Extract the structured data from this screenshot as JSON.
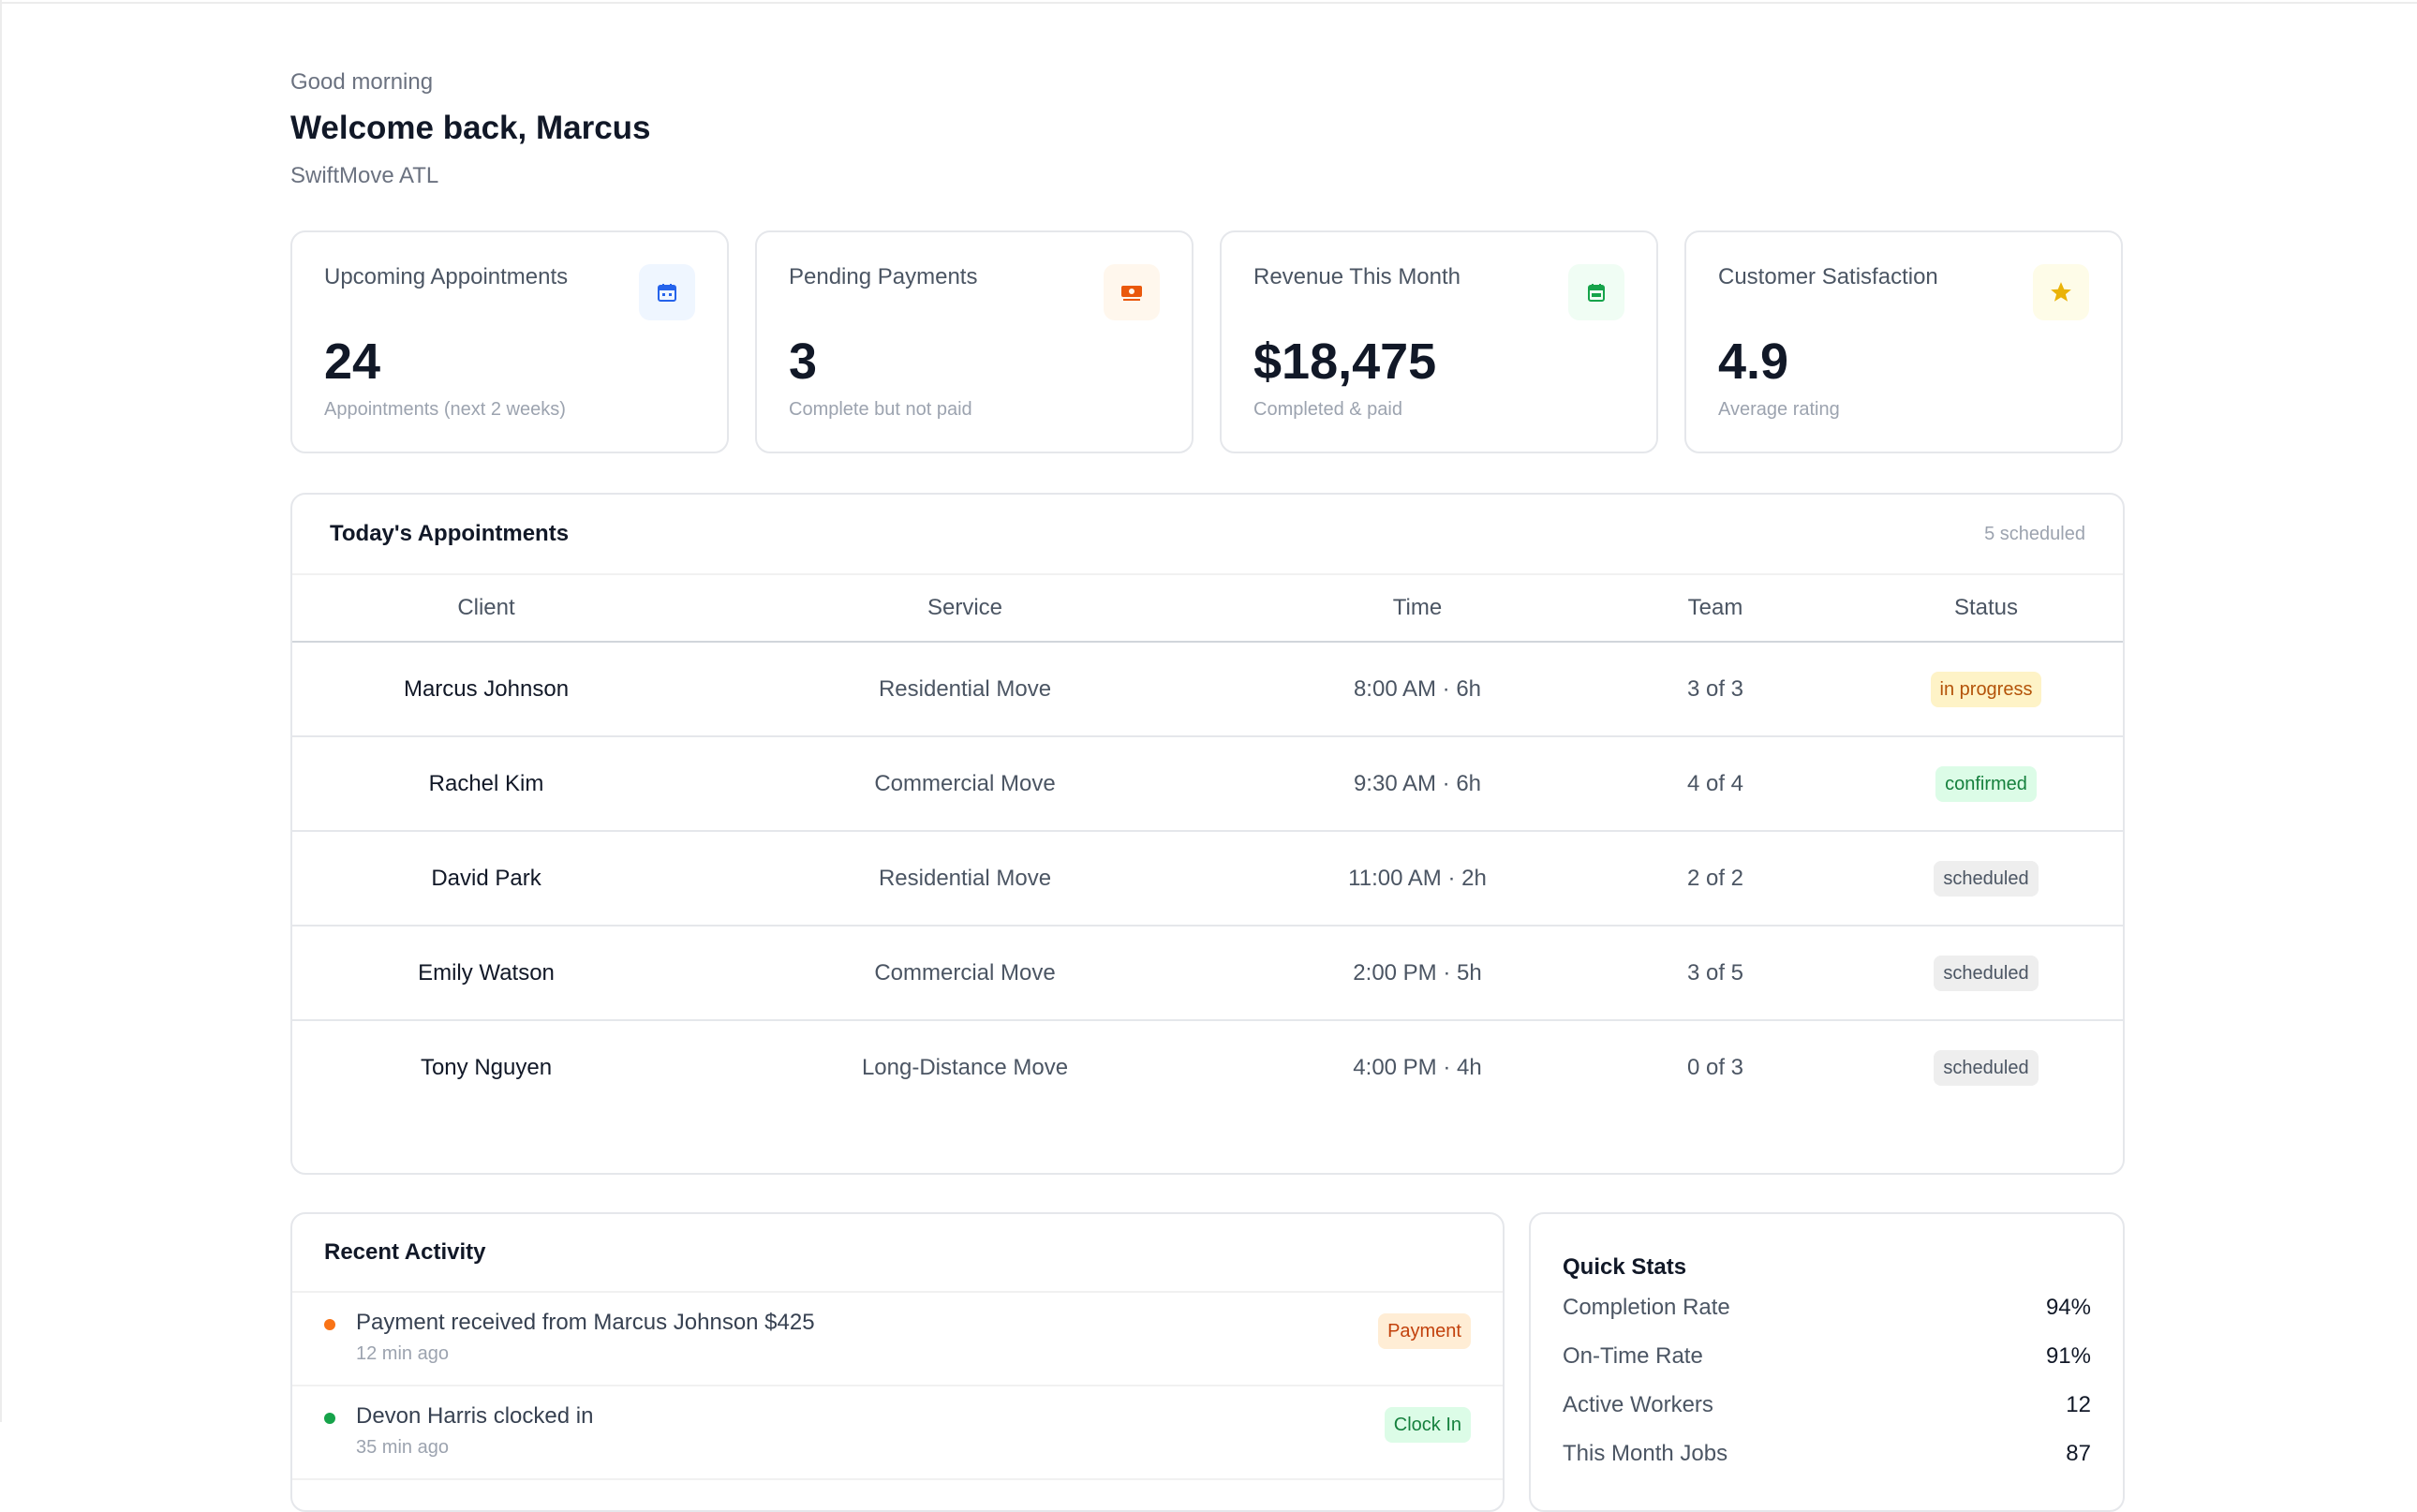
{
  "header": {
    "greeting": "Good morning",
    "welcome": "Welcome back, Marcus",
    "company": "SwiftMove ATL"
  },
  "stats": [
    {
      "label": "Upcoming Appointments",
      "value": "24",
      "sub": "Appointments (next 2 weeks)",
      "icon": "calendar-icon",
      "icon_color": "#2563eb",
      "icon_bg": "#eff6ff"
    },
    {
      "label": "Pending Payments",
      "value": "3",
      "sub": "Complete but not paid",
      "icon": "cash-icon",
      "icon_color": "#ea580c",
      "icon_bg": "#fff7ed"
    },
    {
      "label": "Revenue This Month",
      "value": "$18,475",
      "sub": "Completed & paid",
      "icon": "calendar-check-icon",
      "icon_color": "#16a34a",
      "icon_bg": "#f0fdf4"
    },
    {
      "label": "Customer Satisfaction",
      "value": "4.9",
      "sub": "Average rating",
      "icon": "star-icon",
      "icon_color": "#eab308",
      "icon_bg": "#fefce8"
    }
  ],
  "appointments": {
    "title": "Today's Appointments",
    "count": "5 scheduled",
    "columns": [
      "Client",
      "Service",
      "Time",
      "Team",
      "Status"
    ],
    "rows": [
      {
        "client": "Marcus Johnson",
        "service": "Residential Move",
        "time": "8:00 AM · 6h",
        "team": "3 of 3",
        "team_status": "ok",
        "status": "in progress"
      },
      {
        "client": "Rachel Kim",
        "service": "Commercial Move",
        "time": "9:30 AM · 6h",
        "team": "4 of 4",
        "team_status": "ok",
        "status": "confirmed"
      },
      {
        "client": "David Park",
        "service": "Residential Move",
        "time": "11:00 AM · 2h",
        "team": "2 of 2",
        "team_status": "ok",
        "status": "scheduled"
      },
      {
        "client": "Emily Watson",
        "service": "Commercial Move",
        "time": "2:00 PM · 5h",
        "team": "3 of 5",
        "team_status": "warn",
        "status": "scheduled"
      },
      {
        "client": "Tony Nguyen",
        "service": "Long-Distance Move",
        "time": "4:00 PM · 4h",
        "team": "0 of 3",
        "team_status": "warn",
        "status": "scheduled"
      }
    ]
  },
  "activity": {
    "title": "Recent Activity",
    "items": [
      {
        "text": "Payment received from Marcus Johnson $425",
        "time": "12 min ago",
        "badge": "Payment",
        "dot_color": "#f97316"
      },
      {
        "text": "Devon Harris clocked in",
        "time": "35 min ago",
        "badge": "Clock In",
        "dot_color": "#16a34a"
      }
    ]
  },
  "quick_stats": {
    "title": "Quick Stats",
    "rows": [
      {
        "label": "Completion Rate",
        "value": "94%"
      },
      {
        "label": "On-Time Rate",
        "value": "91%"
      },
      {
        "label": "Active Workers",
        "value": "12"
      },
      {
        "label": "This Month Jobs",
        "value": "87"
      }
    ]
  }
}
